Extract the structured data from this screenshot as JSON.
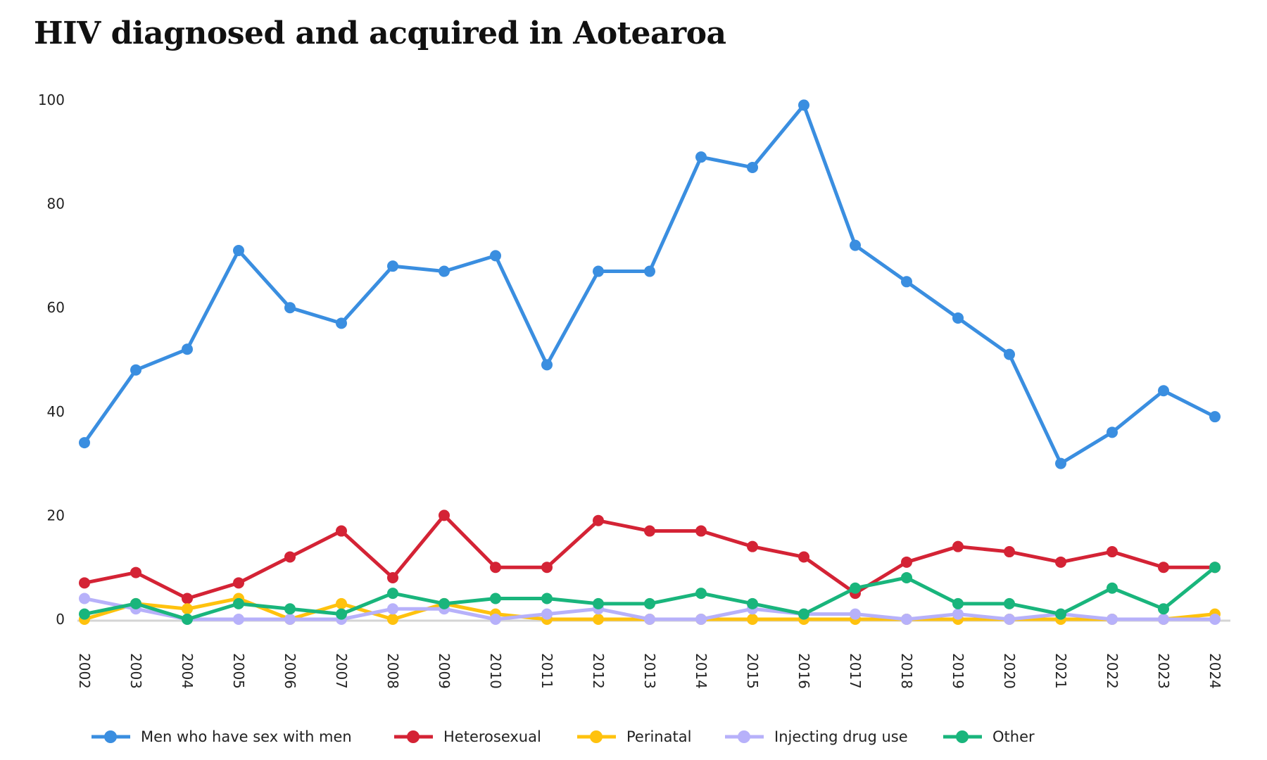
{
  "chart_data": {
    "type": "line",
    "title": "HIV diagnosed and acquired in Aotearoa",
    "xlabel": "",
    "ylabel": "",
    "ylim": [
      0,
      100
    ],
    "yticks": [
      0,
      20,
      40,
      60,
      80,
      100
    ],
    "grid": false,
    "legend_position": "bottom",
    "x": [
      "2002",
      "2003",
      "2004",
      "2005",
      "2006",
      "2007",
      "2008",
      "2009",
      "2010",
      "2011",
      "2012",
      "2013",
      "2014",
      "2015",
      "2016",
      "2017",
      "2018",
      "2019",
      "2020",
      "2021",
      "2022",
      "2023",
      "2024"
    ],
    "series": [
      {
        "name": "Men who have sex with men",
        "color": "#3a8ee0",
        "values": [
          34,
          48,
          52,
          71,
          60,
          57,
          68,
          67,
          70,
          49,
          67,
          67,
          89,
          87,
          99,
          72,
          65,
          58,
          51,
          30,
          36,
          44,
          39
        ]
      },
      {
        "name": "Heterosexual",
        "color": "#d42335",
        "values": [
          7,
          9,
          4,
          7,
          12,
          17,
          8,
          20,
          10,
          10,
          19,
          17,
          17,
          14,
          12,
          5,
          11,
          14,
          13,
          11,
          13,
          10,
          10
        ]
      },
      {
        "name": "Perinatal",
        "color": "#ffc20e",
        "values": [
          0,
          3,
          2,
          4,
          0,
          3,
          0,
          3,
          1,
          0,
          0,
          0,
          0,
          0,
          0,
          0,
          0,
          0,
          0,
          0,
          0,
          0,
          1
        ]
      },
      {
        "name": "Injecting drug use",
        "color": "#b7b1fa",
        "values": [
          4,
          2,
          0,
          0,
          0,
          0,
          2,
          2,
          0,
          1,
          2,
          0,
          0,
          2,
          1,
          1,
          0,
          1,
          0,
          1,
          0,
          0,
          0
        ]
      },
      {
        "name": "Other",
        "color": "#19b57c",
        "values": [
          1,
          3,
          0,
          3,
          2,
          1,
          5,
          3,
          4,
          4,
          3,
          3,
          5,
          3,
          1,
          6,
          8,
          3,
          3,
          1,
          6,
          2,
          10
        ]
      }
    ]
  }
}
